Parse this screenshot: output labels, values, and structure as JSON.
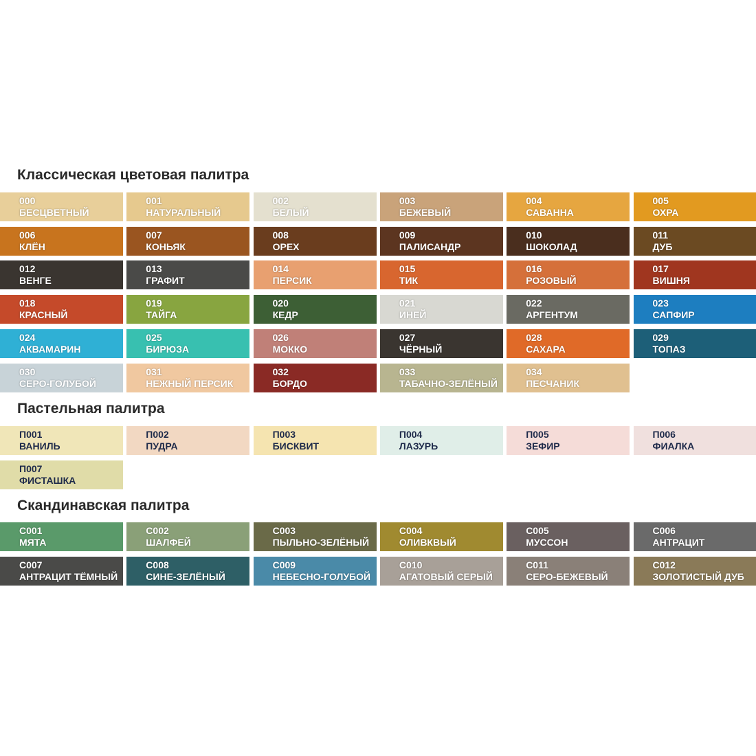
{
  "sections": [
    {
      "title": "Классическая цветовая палитра",
      "text_color": "#ffffff",
      "swatches": [
        {
          "code": "000",
          "name": "БЕСЦВЕТНЫЙ",
          "color": "#e8cf9a"
        },
        {
          "code": "001",
          "name": "НАТУРАЛЬНЫЙ",
          "color": "#e6c98e"
        },
        {
          "code": "002",
          "name": "БЕЛЫЙ",
          "color": "#e4e0cf"
        },
        {
          "code": "003",
          "name": "БЕЖЕВЫЙ",
          "color": "#c9a37a"
        },
        {
          "code": "004",
          "name": "САВАННА",
          "color": "#e6a640"
        },
        {
          "code": "005",
          "name": "ОХРА",
          "color": "#e29a20"
        },
        {
          "code": "006",
          "name": "КЛЁН",
          "color": "#c8741e"
        },
        {
          "code": "007",
          "name": "КОНЬЯК",
          "color": "#9a5520"
        },
        {
          "code": "008",
          "name": "ОРЕХ",
          "color": "#6a3d1e"
        },
        {
          "code": "009",
          "name": "ПАЛИСАНДР",
          "color": "#5c3520"
        },
        {
          "code": "010",
          "name": "ШОКОЛАД",
          "color": "#4a2e1e"
        },
        {
          "code": "011",
          "name": "ДУБ",
          "color": "#6b4a22"
        },
        {
          "code": "012",
          "name": "ВЕНГЕ",
          "color": "#3a3530"
        },
        {
          "code": "013",
          "name": "ГРАФИТ",
          "color": "#4a4a48"
        },
        {
          "code": "014",
          "name": "ПЕРСИК",
          "color": "#e8a070"
        },
        {
          "code": "015",
          "name": "ТИК",
          "color": "#d8662f"
        },
        {
          "code": "016",
          "name": "РОЗОВЫЙ",
          "color": "#d5703a"
        },
        {
          "code": "017",
          "name": "ВИШНЯ",
          "color": "#a0361f"
        },
        {
          "code": "018",
          "name": "КРАСНЫЙ",
          "color": "#c54a2a"
        },
        {
          "code": "019",
          "name": "ТАЙГА",
          "color": "#88a540"
        },
        {
          "code": "020",
          "name": "КЕДР",
          "color": "#3d5f35"
        },
        {
          "code": "021",
          "name": "ИНЕЙ",
          "color": "#d8d8d2"
        },
        {
          "code": "022",
          "name": "АРГЕНТУМ",
          "color": "#6a6a62"
        },
        {
          "code": "023",
          "name": "САПФИР",
          "color": "#1d7ec0"
        },
        {
          "code": "024",
          "name": "АКВАМАРИН",
          "color": "#2fb0d5"
        },
        {
          "code": "025",
          "name": "БИРЮЗА",
          "color": "#38c0b0"
        },
        {
          "code": "026",
          "name": "МОККО",
          "color": "#c08078"
        },
        {
          "code": "027",
          "name": "ЧЁРНЫЙ",
          "color": "#3a3530"
        },
        {
          "code": "028",
          "name": "САХАРА",
          "color": "#e06a28"
        },
        {
          "code": "029",
          "name": "ТОПАЗ",
          "color": "#1d5f78"
        },
        {
          "code": "030",
          "name": "СЕРО-ГОЛУБОЙ",
          "color": "#c8d3d8"
        },
        {
          "code": "031",
          "name": "НЕЖНЫЙ ПЕРСИК",
          "color": "#f0c8a0"
        },
        {
          "code": "032",
          "name": "БОРДО",
          "color": "#8a2a25"
        },
        {
          "code": "033",
          "name": "ТАБАЧНО-ЗЕЛЁНЫЙ",
          "color": "#b8b590"
        },
        {
          "code": "034",
          "name": "ПЕСЧАНИК",
          "color": "#e0c090"
        }
      ]
    },
    {
      "title": "Пастельная палитра",
      "text_color": "#1e2a4a",
      "swatches": [
        {
          "code": "П001",
          "name": "ВАНИЛЬ",
          "color": "#f0e6b8"
        },
        {
          "code": "П002",
          "name": "ПУДРА",
          "color": "#f2d8c2"
        },
        {
          "code": "П003",
          "name": "БИСКВИТ",
          "color": "#f5e4b0"
        },
        {
          "code": "П004",
          "name": "ЛАЗУРЬ",
          "color": "#e0eee8"
        },
        {
          "code": "П005",
          "name": "ЗЕФИР",
          "color": "#f5dcd8"
        },
        {
          "code": "П006",
          "name": "ФИАЛКА",
          "color": "#f0e0de"
        },
        {
          "code": "П007",
          "name": "ФИСТАШКА",
          "color": "#e0dca8"
        }
      ]
    },
    {
      "title": "Скандинавская палитра",
      "text_color": "#ffffff",
      "swatches": [
        {
          "code": "С001",
          "name": "МЯТА",
          "color": "#5a9a6a"
        },
        {
          "code": "С002",
          "name": "ШАЛФЕЙ",
          "color": "#8aa078"
        },
        {
          "code": "С003",
          "name": "ПЫЛЬНО-ЗЕЛЁНЫЙ",
          "color": "#6a6a48"
        },
        {
          "code": "С004",
          "name": "ОЛИВКВЫЙ",
          "color": "#a08a30"
        },
        {
          "code": "С005",
          "name": "МУССОН",
          "color": "#6a6060"
        },
        {
          "code": "С006",
          "name": "АНТРАЦИТ",
          "color": "#6a6a6a"
        },
        {
          "code": "С007",
          "name": "АНТРАЦИТ ТЁМНЫЙ",
          "color": "#4a4a48"
        },
        {
          "code": "С008",
          "name": "СИНЕ-ЗЕЛЁНЫЙ",
          "color": "#2e5f66"
        },
        {
          "code": "С009",
          "name": "НЕБЕСНО-ГОЛУБОЙ",
          "color": "#4a8aa8"
        },
        {
          "code": "С010",
          "name": "АГАТОВЫЙ СЕРЫЙ",
          "color": "#a8a098"
        },
        {
          "code": "С011",
          "name": "СЕРО-БЕЖЕВЫЙ",
          "color": "#8a8078"
        },
        {
          "code": "С012",
          "name": "ЗОЛОТИСТЫЙ ДУБ",
          "color": "#8a7a58"
        }
      ]
    }
  ]
}
